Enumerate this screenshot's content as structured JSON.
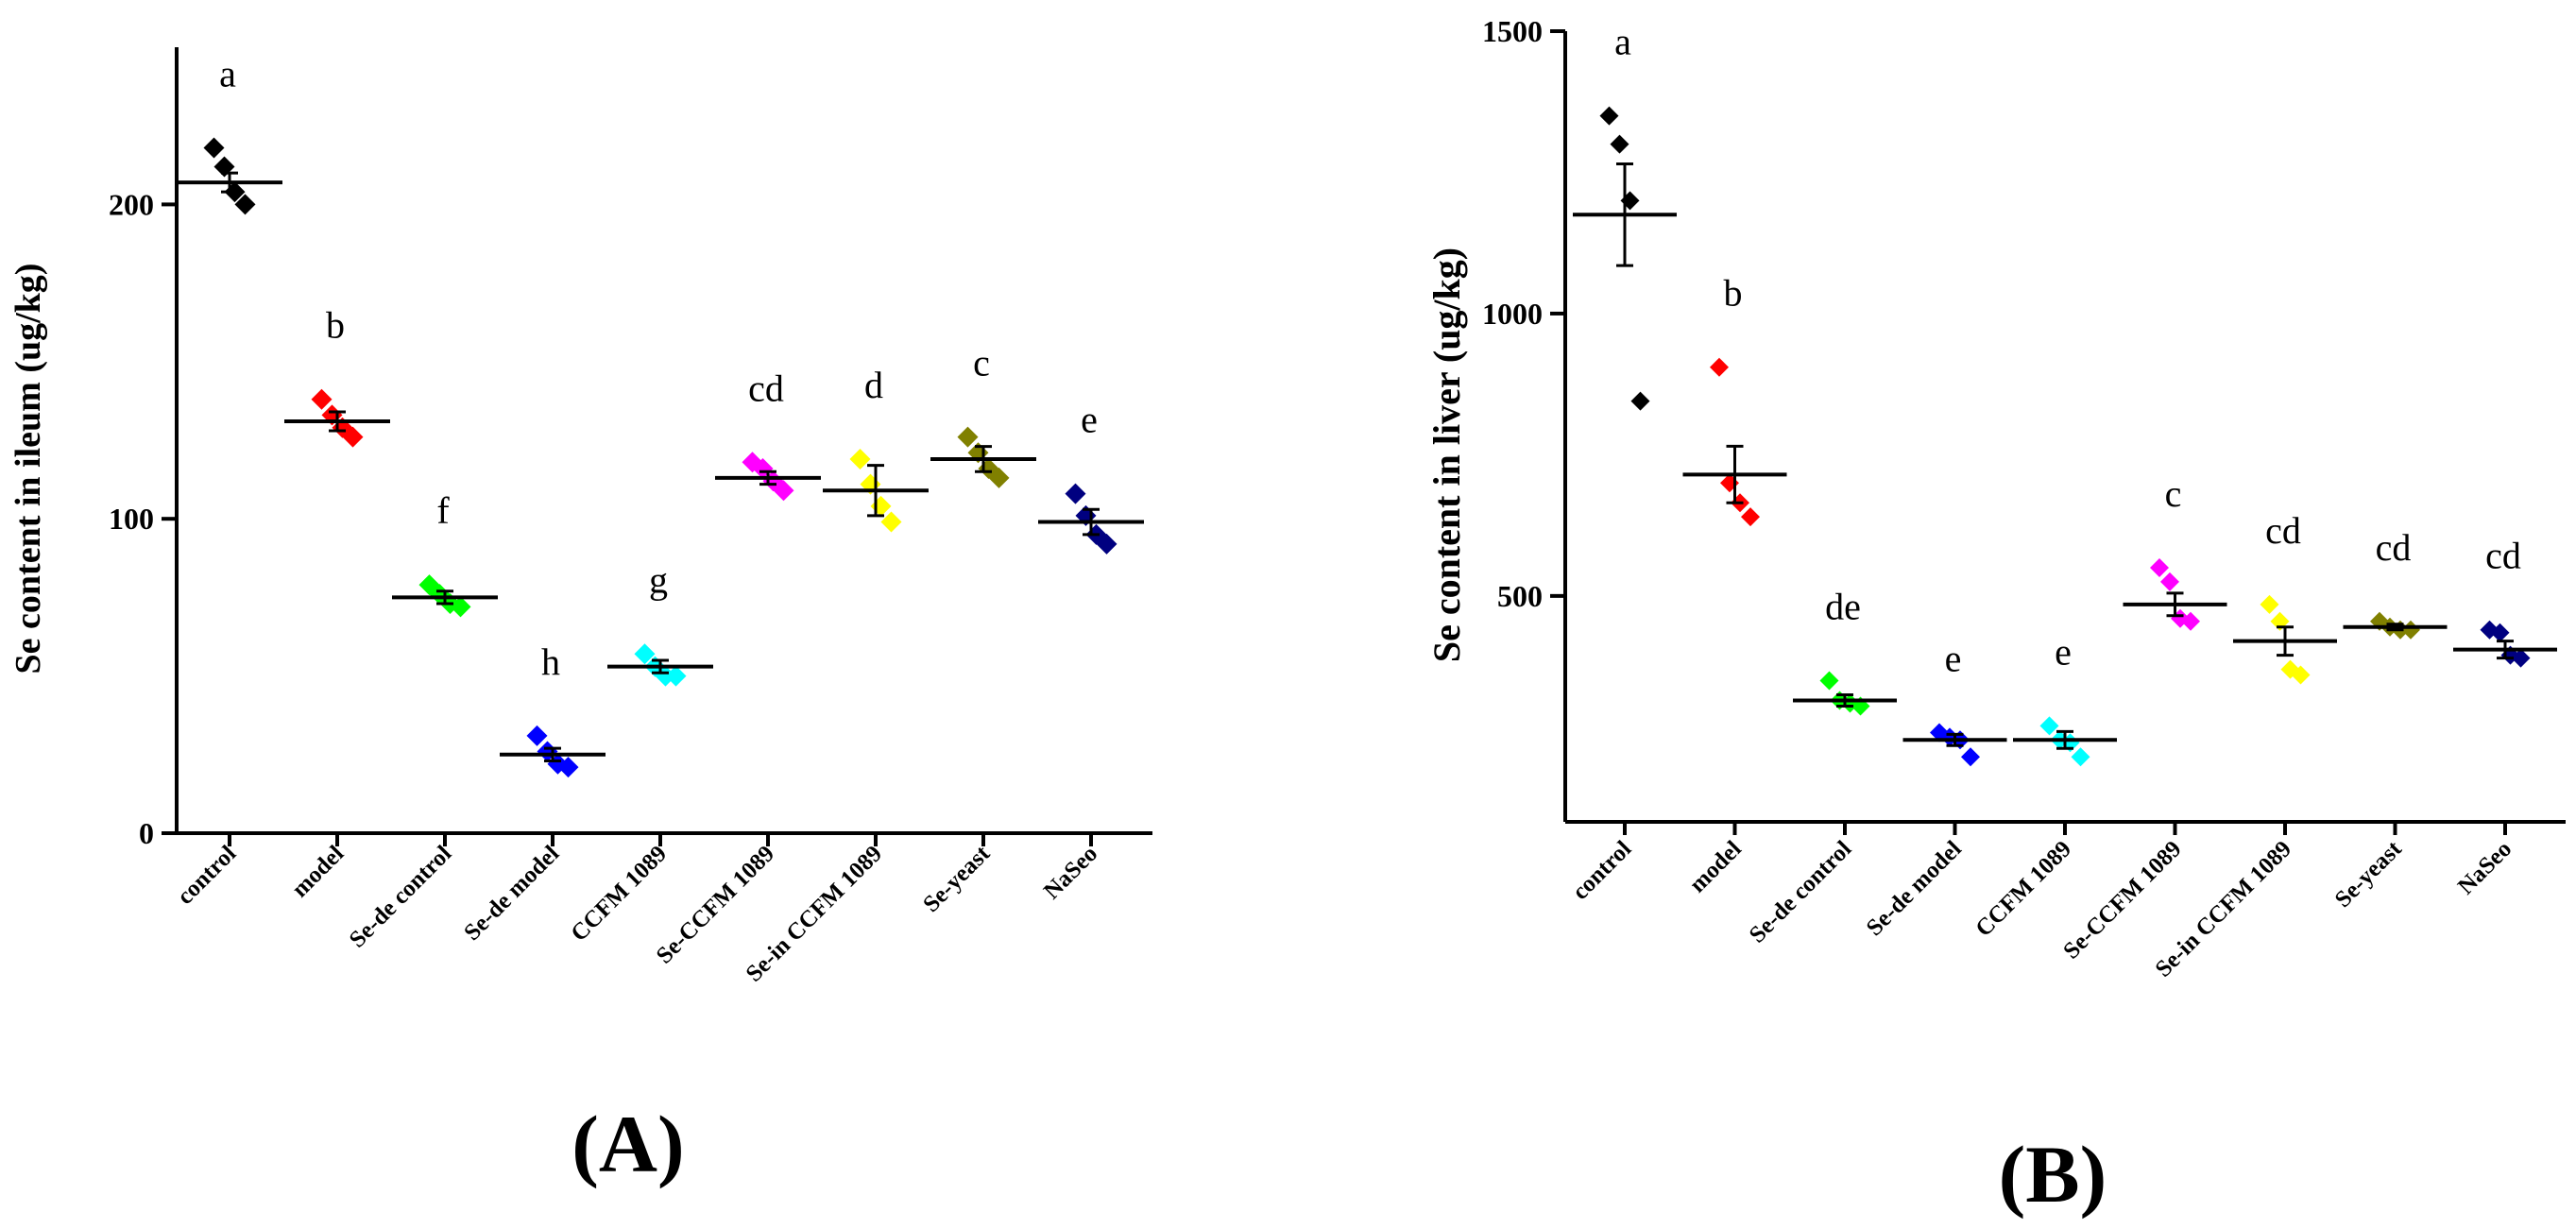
{
  "chart_data": [
    {
      "panel": "(A)",
      "type": "scatter",
      "ylabel": "Se content in ileum (ug/kg)",
      "ylim": [
        0,
        250
      ],
      "yticks": [
        0,
        100,
        200
      ],
      "categories": [
        "control",
        "model",
        "Se-de control",
        "Se-de model",
        "CCFM 1089",
        "Se-CCFM 1089",
        "Se-in CCFM 1089",
        "Se-yeast",
        "NaSeo"
      ],
      "colors": [
        "#000000",
        "#ff0000",
        "#00ff00",
        "#0000ff",
        "#00ffff",
        "#ff00ff",
        "#ffff00",
        "#808000",
        "#000080"
      ],
      "letters": [
        "a",
        "b",
        "f",
        "h",
        "g",
        "cd",
        "d",
        "c",
        "e"
      ],
      "means": [
        207,
        131,
        75,
        25,
        53,
        113,
        109,
        119,
        99
      ],
      "sem": [
        3,
        3,
        2,
        2,
        2,
        2,
        8,
        4,
        4
      ],
      "points": [
        [
          218,
          212,
          204,
          200
        ],
        [
          138,
          133,
          129,
          126
        ],
        [
          79,
          76,
          73,
          72
        ],
        [
          31,
          26,
          22,
          21
        ],
        [
          57,
          53,
          50,
          50
        ],
        [
          118,
          116,
          112,
          109
        ],
        [
          119,
          111,
          104,
          99
        ],
        [
          126,
          121,
          116,
          113
        ],
        [
          108,
          101,
          95,
          92
        ]
      ]
    },
    {
      "panel": "(B)",
      "type": "scatter",
      "ylabel": "Se content in liver (ug/kg)",
      "ylim": [
        100,
        1500
      ],
      "yticks": [
        500,
        1000,
        1500
      ],
      "categories": [
        "control",
        "model",
        "Se-de control",
        "Se-de model",
        "CCFM 1089",
        "Se-CCFM 1089",
        "Se-in CCFM 1089",
        "Se-yeast",
        "NaSeo"
      ],
      "colors": [
        "#000000",
        "#ff0000",
        "#00ff00",
        "#0000ff",
        "#00ffff",
        "#ff00ff",
        "#ffff00",
        "#808000",
        "#000080"
      ],
      "letters": [
        "a",
        "b",
        "de",
        "e",
        "e",
        "c",
        "cd",
        "cd",
        "cd"
      ],
      "means": [
        1175,
        715,
        315,
        245,
        245,
        485,
        420,
        445,
        405
      ],
      "sem": [
        90,
        50,
        10,
        10,
        15,
        20,
        25,
        5,
        15
      ],
      "points": [
        [
          1350,
          1300,
          1200,
          845
        ],
        [
          905,
          700,
          665,
          640
        ],
        [
          350,
          315,
          310,
          305
        ],
        [
          258,
          250,
          245,
          215
        ],
        [
          270,
          245,
          240,
          215
        ],
        [
          550,
          525,
          460,
          455
        ],
        [
          485,
          455,
          370,
          360
        ],
        [
          455,
          445,
          440,
          440
        ],
        [
          440,
          435,
          395,
          390
        ]
      ]
    }
  ]
}
